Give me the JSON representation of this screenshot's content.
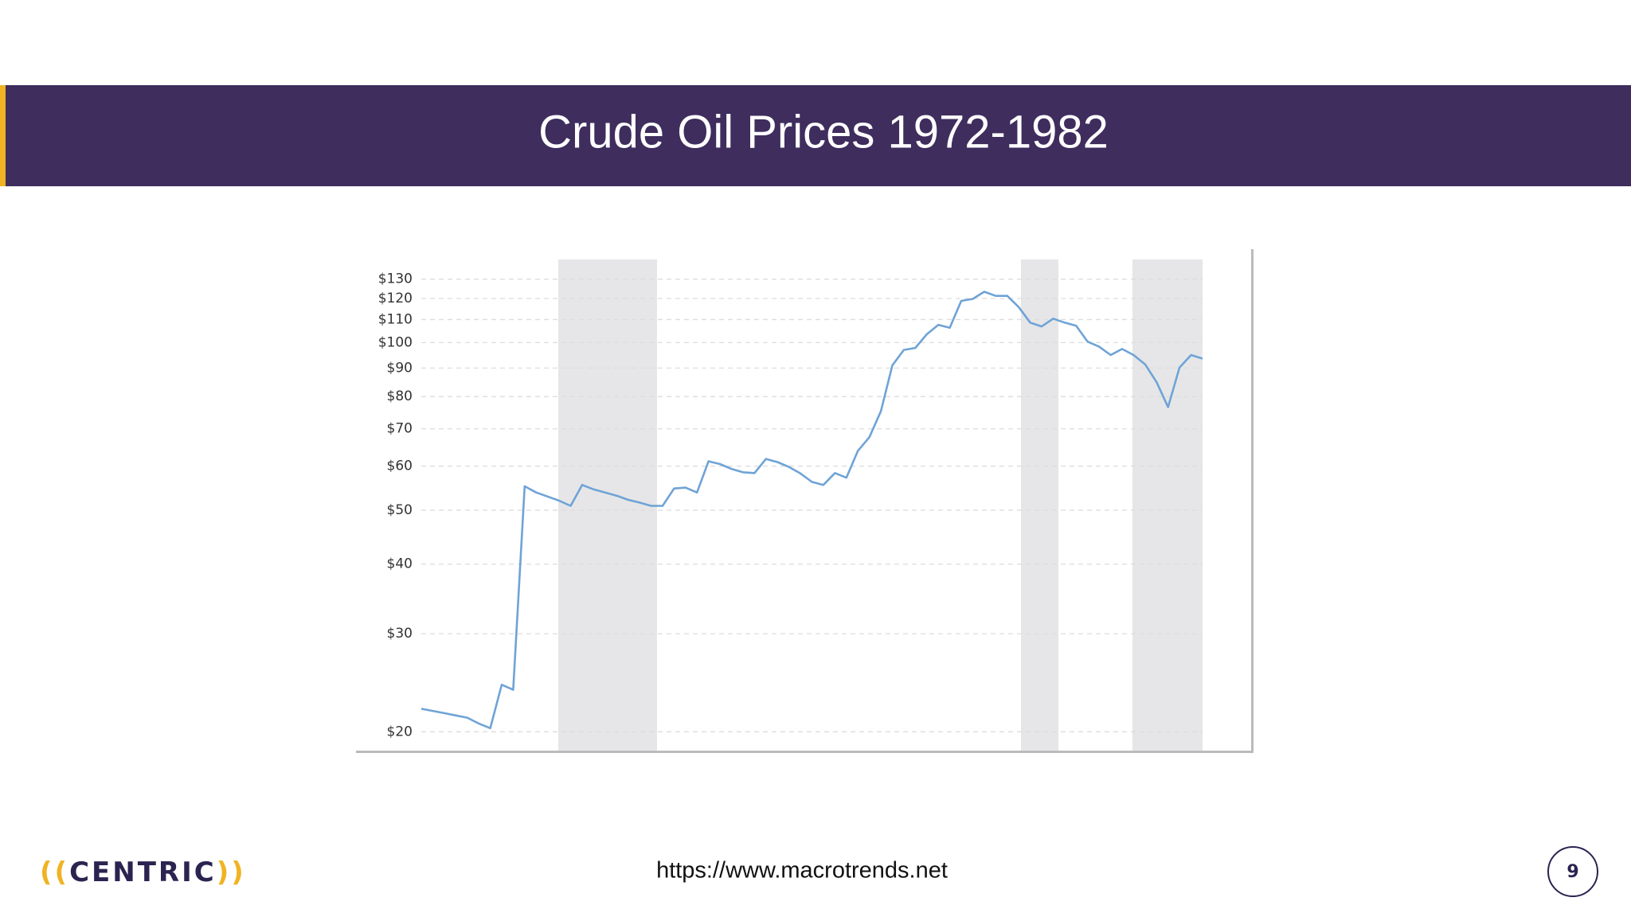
{
  "header": {
    "title": "Crude Oil Prices 1972-1982"
  },
  "chart_data": {
    "type": "line",
    "color": "#6fa3d6",
    "log_scale": true,
    "grid": true,
    "values": [
      22.0,
      21.8,
      21.6,
      21.4,
      21.2,
      20.7,
      20.3,
      24.3,
      23.8,
      55.2,
      53.8,
      52.9,
      52.0,
      50.9,
      55.5,
      54.5,
      53.8,
      53.1,
      52.2,
      51.6,
      50.9,
      50.9,
      54.7,
      54.9,
      53.8,
      61.2,
      60.5,
      59.3,
      58.5,
      58.3,
      61.8,
      61.0,
      59.8,
      58.2,
      56.2,
      55.5,
      58.3,
      57.2,
      63.9,
      67.6,
      75.3,
      91.0,
      97.0,
      97.8,
      103.5,
      107.6,
      106.3,
      118.8,
      119.8,
      123.4,
      121.3,
      121.3,
      115.8,
      108.6,
      106.9,
      110.4,
      108.6,
      107.2,
      100.4,
      98.3,
      95.0,
      97.4,
      95.0,
      91.4,
      84.9,
      76.6,
      90.2,
      95.0,
      93.6
    ],
    "ylim": [
      18.5,
      141
    ],
    "yticks": [
      {
        "value": 20,
        "label": "$20"
      },
      {
        "value": 30,
        "label": "$30"
      },
      {
        "value": 40,
        "label": "$40"
      },
      {
        "value": 50,
        "label": "$50"
      },
      {
        "value": 60,
        "label": "$60"
      },
      {
        "value": 70,
        "label": "$70"
      },
      {
        "value": 80,
        "label": "$80"
      },
      {
        "value": 90,
        "label": "$90"
      },
      {
        "value": 100,
        "label": "$100"
      },
      {
        "value": 110,
        "label": "$110"
      },
      {
        "value": 120,
        "label": "$120"
      },
      {
        "value": 130,
        "label": "$130"
      }
    ]
  },
  "footer": {
    "logo": {
      "left": "((",
      "name": "CENTRIC",
      "right": "))"
    },
    "url": "https://www.macrotrends.net",
    "page": "9"
  }
}
